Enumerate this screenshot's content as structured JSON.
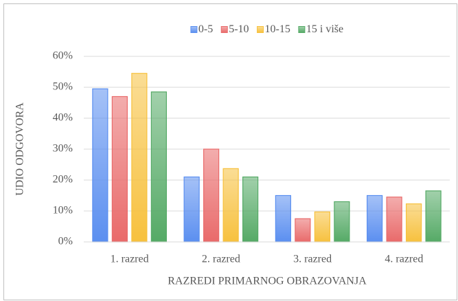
{
  "chart_data": {
    "type": "bar",
    "categories": [
      "1. razred",
      "2. razred",
      "3. razred",
      "4. razred"
    ],
    "series": [
      {
        "name": "0-5",
        "color": "#5b8ff0",
        "values": [
          49.5,
          21,
          15,
          15
        ]
      },
      {
        "name": "5-10",
        "color": "#e96a6a",
        "values": [
          47,
          30,
          7.5,
          14.5
        ]
      },
      {
        "name": "10-15",
        "color": "#f7c13e",
        "values": [
          54.5,
          23.7,
          9.7,
          12.3
        ]
      },
      {
        "name": "15 i više",
        "color": "#55aa66",
        "values": [
          48.5,
          21,
          13,
          16.5
        ]
      }
    ],
    "xlabel": "RAZREDI PRIMARNOG OBRAZOVANJA",
    "ylabel": "UDIO ODGOVORA",
    "ylim": [
      0,
      60
    ],
    "yticks": [
      {
        "value": 0,
        "label": "0%"
      },
      {
        "value": 10,
        "label": "10%"
      },
      {
        "value": 20,
        "label": "20%"
      },
      {
        "value": 30,
        "label": "30%"
      },
      {
        "value": 40,
        "label": "40%"
      },
      {
        "value": 50,
        "label": "50%"
      },
      {
        "value": 60,
        "label": "60%"
      }
    ],
    "grid": true,
    "legend": "top"
  }
}
